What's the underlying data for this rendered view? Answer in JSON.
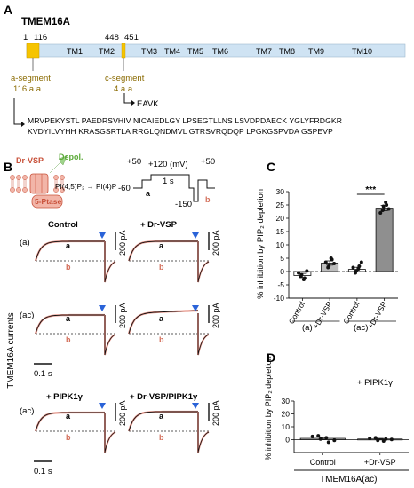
{
  "panelA": {
    "letter": "A",
    "protein": "TMEM16A",
    "positions": {
      "start": "1",
      "a_end": "116",
      "c_start": "448",
      "c_end": "451"
    },
    "tm_labels": [
      "TM1",
      "TM2",
      "TM3",
      "TM4",
      "TM5",
      "TM6",
      "TM7",
      "TM8",
      "TM9",
      "TM10"
    ],
    "a_segment_line1": "a-segment",
    "a_segment_line2": "116 a.a.",
    "c_segment_line1": "c-segment",
    "c_segment_line2": "4 a.a.",
    "c_sequence": "EAVK",
    "seq_line1": "MRVPEKYSTL PAEDRSVHIV NICAIEDLGY LPSEGTLLNS LSVDPDAECK YGLYFRDGKR",
    "seq_line2": "KVDYILVYHH KRASGSRTLA RRGLQNDMVL GTRSVRQDQP LPGKGSPVDA GSPEVP"
  },
  "panelB": {
    "letter": "B",
    "drvsp": "Dr-VSP",
    "depol": "Depol.",
    "pip_reaction": "PI(4,5)P₂ → PI(4)P",
    "ptase": "5-Ptase",
    "protocol": {
      "v_neg60": "-60",
      "v_pos50a": "+50",
      "v_pos120": "+120 (mV)",
      "v_neg150": "-150",
      "v_pos50b": "+50",
      "time": "1 s",
      "mark_a": "a",
      "mark_b": "b"
    },
    "ylabel": "TMEM16A currents",
    "cond_control": "Control",
    "cond_drvsp": "+ Dr-VSP",
    "cond_pipk": "+ PIPK1γ",
    "cond_drvsp_pipk": "+ Dr-VSP/PIPK1γ",
    "row_a": "(a)",
    "row_ac": "(ac)",
    "row_ac2": "(ac)",
    "scale_200pA": "200 pA",
    "scale_time": "0.1 s",
    "trace_a": "a",
    "trace_b": "b"
  },
  "panelC": {
    "letter": "C",
    "chart_data": {
      "type": "bar",
      "ylabel": "% inhibition by PIP₂ depletion",
      "ylim": [
        -10,
        30
      ],
      "yticks": [
        -10,
        -5,
        0,
        5,
        10,
        15,
        20,
        25,
        30
      ],
      "categories": [
        "Control",
        "+Dr-VSP",
        "Control",
        "+Dr-VSP"
      ],
      "groups": [
        "(a)",
        "(ac)"
      ],
      "values": [
        -1.5,
        3.2,
        0.8,
        23.8
      ],
      "errors": [
        0.8,
        0.8,
        0.8,
        1.0
      ],
      "points": [
        [
          -0.5,
          -1.2,
          -2.5,
          -1.8,
          -3.0,
          0.2
        ],
        [
          3.5,
          2.0,
          4.5,
          1.5,
          5.0,
          3.0
        ],
        [
          1.5,
          0.2,
          2.0,
          -0.5,
          1.0,
          3.5
        ],
        [
          22.0,
          24.5,
          25.0,
          23.0,
          26.0,
          23.5
        ]
      ],
      "significance": "***"
    }
  },
  "panelD": {
    "letter": "D",
    "annotation": "+ PIPK1γ",
    "xgroup": "TMEM16A(ac)",
    "chart_data": {
      "type": "bar",
      "ylabel": "% inhibition by PIP₂ depletion",
      "ylim": [
        -10,
        30
      ],
      "yticks": [
        0,
        10,
        20,
        30
      ],
      "categories": [
        "Control",
        "+Dr-VSP"
      ],
      "values": [
        1.0,
        0.5
      ],
      "errors": [
        0.8,
        0.5
      ],
      "points": [
        [
          2.5,
          0.5,
          -2.0,
          3.0,
          1.5,
          -0.5
        ],
        [
          1.0,
          -0.5,
          0.5,
          1.5,
          -1.0,
          0.2
        ]
      ]
    }
  }
}
